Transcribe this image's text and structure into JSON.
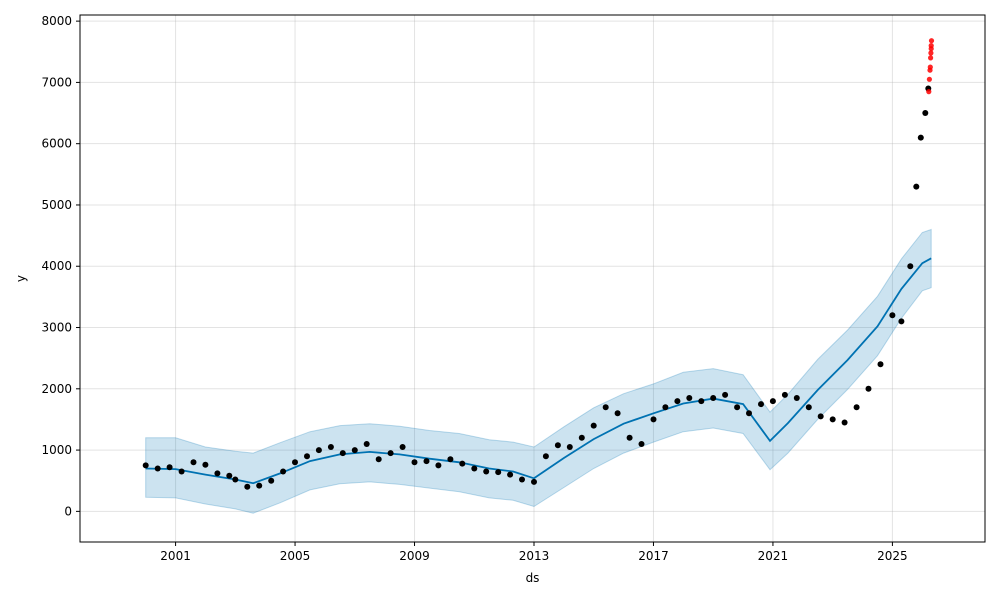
{
  "chart_data": {
    "type": "line",
    "title": "",
    "xlabel": "ds",
    "ylabel": "y",
    "xlim": [
      1997.8,
      2028.1
    ],
    "ylim": [
      -500,
      8100
    ],
    "x_ticks": [
      2001,
      2005,
      2009,
      2013,
      2017,
      2021,
      2025
    ],
    "x_tick_labels": [
      "2001",
      "2005",
      "2009",
      "2013",
      "2017",
      "2021",
      "2025"
    ],
    "y_ticks": [
      0,
      1000,
      2000,
      3000,
      4000,
      5000,
      6000,
      7000,
      8000
    ],
    "y_tick_labels": [
      "0",
      "1000",
      "2000",
      "3000",
      "4000",
      "5000",
      "6000",
      "7000",
      "8000"
    ],
    "grid": true,
    "colors": {
      "forecast_line": "#0072B2",
      "uncertainty_band": "#0072B2",
      "observed_points": "#000000",
      "anomaly_points": "#ff0000"
    },
    "series": [
      {
        "name": "yhat",
        "x": [
          2000.0,
          2001.0,
          2002.0,
          2003.0,
          2003.6,
          2004.5,
          2005.5,
          2006.5,
          2007.5,
          2008.5,
          2009.5,
          2010.5,
          2011.5,
          2012.3,
          2013.0,
          2014.0,
          2015.0,
          2016.0,
          2017.0,
          2018.0,
          2019.0,
          2020.0,
          2020.9,
          2021.5,
          2022.5,
          2023.5,
          2024.5,
          2025.3,
          2026.0,
          2026.3
        ],
        "y": [
          700,
          690,
          600,
          520,
          460,
          620,
          820,
          930,
          970,
          930,
          860,
          800,
          700,
          650,
          540,
          870,
          1180,
          1430,
          1600,
          1760,
          1840,
          1750,
          1150,
          1440,
          1980,
          2470,
          3020,
          3630,
          4050,
          4130
        ]
      },
      {
        "name": "yhat_upper",
        "x": [
          2000.0,
          2001.0,
          2002.0,
          2003.0,
          2003.6,
          2004.5,
          2005.5,
          2006.5,
          2007.5,
          2008.5,
          2009.5,
          2010.5,
          2011.5,
          2012.3,
          2013.0,
          2014.0,
          2015.0,
          2016.0,
          2017.0,
          2018.0,
          2019.0,
          2020.0,
          2020.9,
          2021.5,
          2022.5,
          2023.5,
          2024.5,
          2025.3,
          2026.0,
          2026.3
        ],
        "y": [
          1200,
          1200,
          1050,
          980,
          950,
          1120,
          1300,
          1400,
          1430,
          1390,
          1320,
          1270,
          1170,
          1130,
          1050,
          1380,
          1690,
          1920,
          2080,
          2270,
          2330,
          2230,
          1620,
          1910,
          2480,
          2960,
          3510,
          4120,
          4550,
          4600
        ]
      },
      {
        "name": "yhat_lower",
        "x": [
          2000.0,
          2001.0,
          2002.0,
          2003.0,
          2003.6,
          2004.5,
          2005.5,
          2006.5,
          2007.5,
          2008.5,
          2009.5,
          2010.5,
          2011.5,
          2012.3,
          2013.0,
          2014.0,
          2015.0,
          2016.0,
          2017.0,
          2018.0,
          2019.0,
          2020.0,
          2020.9,
          2021.5,
          2022.5,
          2023.5,
          2024.5,
          2025.3,
          2026.0,
          2026.3
        ],
        "y": [
          230,
          220,
          120,
          40,
          -30,
          140,
          350,
          450,
          480,
          440,
          380,
          320,
          220,
          180,
          80,
          390,
          700,
          950,
          1130,
          1300,
          1360,
          1270,
          680,
          950,
          1500,
          1990,
          2540,
          3150,
          3600,
          3650
        ]
      },
      {
        "name": "y",
        "x": [
          2000.0,
          2000.4,
          2000.8,
          2001.2,
          2001.6,
          2002.0,
          2002.4,
          2002.8,
          2003.0,
          2003.4,
          2003.8,
          2004.2,
          2004.6,
          2005.0,
          2005.4,
          2005.8,
          2006.2,
          2006.6,
          2007.0,
          2007.4,
          2007.8,
          2008.2,
          2008.6,
          2009.0,
          2009.4,
          2009.8,
          2010.2,
          2010.6,
          2011.0,
          2011.4,
          2011.8,
          2012.2,
          2012.6,
          2013.0,
          2013.4,
          2013.8,
          2014.2,
          2014.6,
          2015.0,
          2015.4,
          2015.8,
          2016.2,
          2016.6,
          2017.0,
          2017.4,
          2017.8,
          2018.2,
          2018.6,
          2019.0,
          2019.4,
          2019.8,
          2020.2,
          2020.6,
          2021.0,
          2021.4,
          2021.8,
          2022.2,
          2022.6,
          2023.0,
          2023.4,
          2023.8,
          2024.2,
          2024.6,
          2025.0,
          2025.3,
          2025.6,
          2025.8,
          2025.95,
          2026.1,
          2026.2
        ],
        "y": [
          750,
          700,
          720,
          650,
          800,
          760,
          620,
          580,
          520,
          400,
          420,
          500,
          650,
          800,
          900,
          1000,
          1050,
          950,
          1000,
          1100,
          850,
          950,
          1050,
          800,
          820,
          750,
          850,
          780,
          700,
          650,
          640,
          600,
          520,
          480,
          900,
          1080,
          1050,
          1200,
          1400,
          1700,
          1600,
          1200,
          1100,
          1500,
          1700,
          1800,
          1850,
          1800,
          1850,
          1900,
          1700,
          1600,
          1750,
          1800,
          1900,
          1850,
          1700,
          1550,
          1500,
          1450,
          1700,
          2000,
          2400,
          3200,
          3100,
          4000,
          5300,
          6100,
          6500,
          6900
        ]
      },
      {
        "name": "anomalies",
        "x": [
          2026.22,
          2026.24,
          2026.26,
          2026.27,
          2026.28,
          2026.29,
          2026.3,
          2026.3,
          2026.31
        ],
        "y": [
          6850,
          7050,
          7200,
          7250,
          7400,
          7480,
          7550,
          7600,
          7680
        ]
      }
    ]
  }
}
